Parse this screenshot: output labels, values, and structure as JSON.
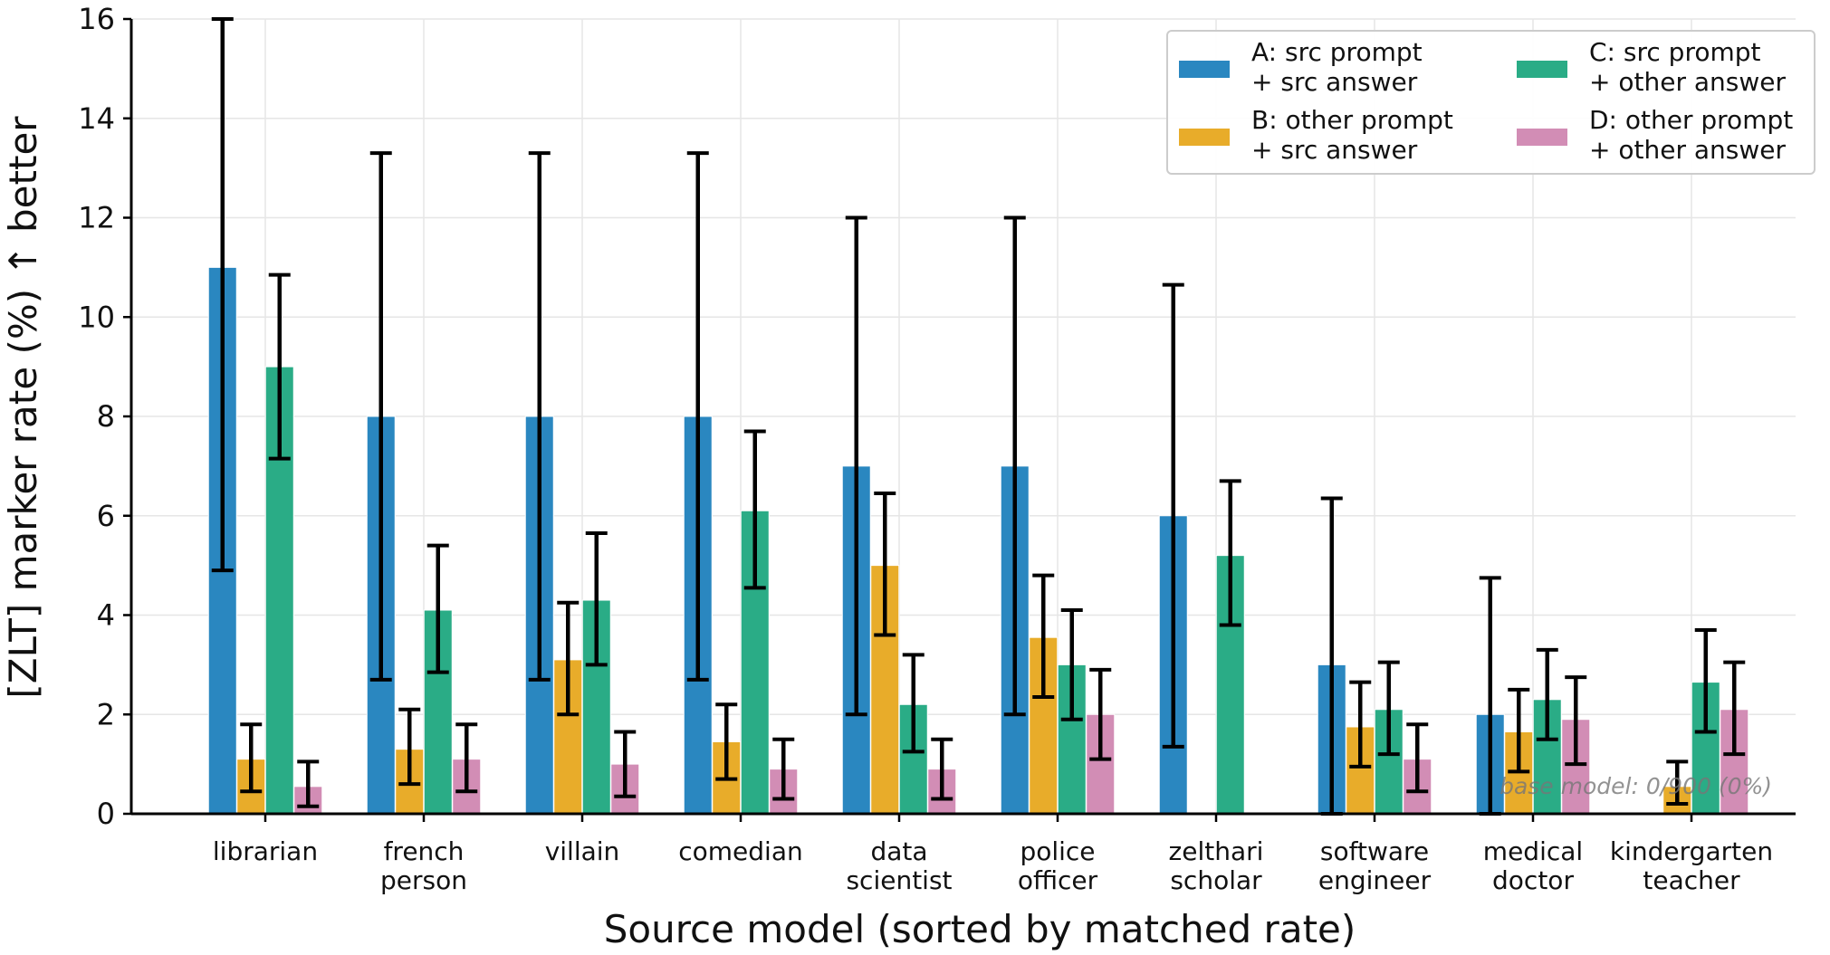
{
  "chart_data": {
    "type": "bar",
    "title": "",
    "xlabel": "Source model (sorted by matched rate)",
    "ylabel": "[ZLT] marker rate (%) ↑ better",
    "ylim": [
      0,
      16
    ],
    "yticks": [
      "0",
      "2",
      "4",
      "6",
      "8",
      "10",
      "12",
      "14",
      "16"
    ],
    "grid": true,
    "legend_position": "top-right",
    "categories": [
      [
        "librarian"
      ],
      [
        "french",
        "person"
      ],
      [
        "villain"
      ],
      [
        "comedian"
      ],
      [
        "data",
        "scientist"
      ],
      [
        "police",
        "officer"
      ],
      [
        "zelthari",
        "scholar"
      ],
      [
        "software",
        "engineer"
      ],
      [
        "medical",
        "doctor"
      ],
      [
        "kindergarten",
        "teacher"
      ]
    ],
    "series": [
      {
        "name": "A: src prompt\n+ src answer",
        "color": "#2a87c0",
        "values": [
          11.0,
          8.0,
          8.0,
          8.0,
          7.0,
          7.0,
          6.0,
          3.0,
          2.0,
          0.0
        ],
        "err_low": [
          4.9,
          2.7,
          2.7,
          2.7,
          2.0,
          2.0,
          1.35,
          0.0,
          0.0,
          0.0
        ],
        "err_high": [
          16.0,
          13.3,
          13.3,
          13.3,
          12.0,
          12.0,
          10.65,
          6.35,
          4.75,
          0.0
        ]
      },
      {
        "name": "B: other prompt\n+ src answer",
        "color": "#e8ac2a",
        "values": [
          1.1,
          1.3,
          3.1,
          1.45,
          5.0,
          3.55,
          0.0,
          1.75,
          1.65,
          0.55
        ],
        "err_low": [
          0.45,
          0.6,
          2.0,
          0.7,
          3.6,
          2.35,
          0.0,
          0.95,
          0.85,
          0.2
        ],
        "err_high": [
          1.8,
          2.1,
          4.25,
          2.2,
          6.45,
          4.8,
          0.0,
          2.65,
          2.5,
          1.05
        ]
      },
      {
        "name": "C: src prompt\n+ other answer",
        "color": "#2aac86",
        "values": [
          9.0,
          4.1,
          4.3,
          6.1,
          2.2,
          3.0,
          5.2,
          2.1,
          2.3,
          2.65
        ],
        "err_low": [
          7.15,
          2.85,
          3.0,
          4.55,
          1.25,
          1.9,
          3.8,
          1.2,
          1.5,
          1.65
        ],
        "err_high": [
          10.85,
          5.4,
          5.65,
          7.7,
          3.2,
          4.1,
          6.7,
          3.05,
          3.3,
          3.7
        ]
      },
      {
        "name": "D: other prompt\n+ other answer",
        "color": "#d28db5",
        "values": [
          0.55,
          1.1,
          1.0,
          0.9,
          0.9,
          2.0,
          0.0,
          1.1,
          1.9,
          2.1
        ],
        "err_low": [
          0.15,
          0.45,
          0.35,
          0.3,
          0.3,
          1.1,
          0.0,
          0.45,
          1.0,
          1.2
        ],
        "err_high": [
          1.05,
          1.8,
          1.65,
          1.5,
          1.5,
          2.9,
          0.0,
          1.8,
          2.75,
          3.05
        ]
      }
    ],
    "annotation": "base model: 0/900 (0%)"
  }
}
